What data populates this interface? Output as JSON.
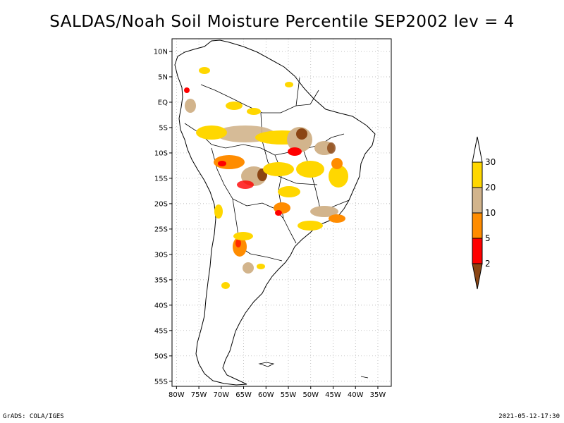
{
  "title": "SALDAS/Noah Soil Moisture Percentile SEP2002 lev = 4",
  "footer": {
    "left": "GrADS: COLA/IGES",
    "right": "2021-05-12-17:30"
  },
  "map": {
    "lat_ticks": [
      {
        "lat": 10,
        "label": "10N"
      },
      {
        "lat": 5,
        "label": "5N"
      },
      {
        "lat": 0,
        "label": "EQ"
      },
      {
        "lat": -5,
        "label": "5S"
      },
      {
        "lat": -10,
        "label": "10S"
      },
      {
        "lat": -15,
        "label": "15S"
      },
      {
        "lat": -20,
        "label": "20S"
      },
      {
        "lat": -25,
        "label": "25S"
      },
      {
        "lat": -30,
        "label": "30S"
      },
      {
        "lat": -35,
        "label": "35S"
      },
      {
        "lat": -40,
        "label": "40S"
      },
      {
        "lat": -45,
        "label": "45S"
      },
      {
        "lat": -50,
        "label": "50S"
      },
      {
        "lat": -55,
        "label": "55S"
      }
    ],
    "lon_ticks": [
      {
        "lon": -80,
        "label": "80W"
      },
      {
        "lon": -75,
        "label": "75W"
      },
      {
        "lon": -70,
        "label": "70W"
      },
      {
        "lon": -65,
        "label": "65W"
      },
      {
        "lon": -60,
        "label": "60W"
      },
      {
        "lon": -55,
        "label": "55W"
      },
      {
        "lon": -50,
        "label": "50W"
      },
      {
        "lon": -45,
        "label": "45W"
      },
      {
        "lon": -40,
        "label": "40W"
      },
      {
        "lon": -35,
        "label": "35W"
      }
    ],
    "lon_range": [
      -81,
      -32
    ],
    "lat_range": [
      -56,
      12.5
    ],
    "grid": "dotted"
  },
  "legend": {
    "bins": [
      {
        "label": "2",
        "color": "#8b4513"
      },
      {
        "label": "5",
        "color": "#ff0000"
      },
      {
        "label": "10",
        "color": "#ff8c00"
      },
      {
        "label": "20",
        "color": "#d2b48c"
      },
      {
        "label": "30",
        "color": "#ffd700"
      }
    ],
    "top_color": "#ffffff",
    "bottom_color": "#8b4513"
  },
  "colors": {
    "frame": "#000000",
    "grid": "#aaaaaa",
    "pct_2": "#8b4513",
    "pct_5": "#ff0000",
    "pct_10": "#ff8c00",
    "pct_20": "#d2b48c",
    "pct_30": "#ffd700"
  }
}
